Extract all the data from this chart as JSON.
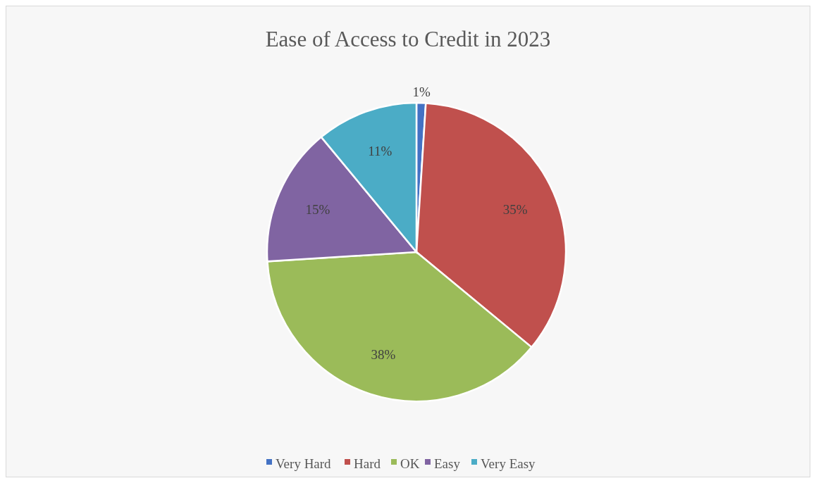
{
  "chart_data": {
    "type": "pie",
    "title": "Ease of Access to Credit in 2023",
    "categories": [
      "Very Hard",
      "Hard",
      "OK",
      "Easy",
      "Very Easy"
    ],
    "values": [
      1,
      35,
      38,
      15,
      11
    ],
    "colors": [
      "#4472c4",
      "#c0504d",
      "#9bbb59",
      "#8064a2",
      "#4bacc6"
    ],
    "value_labels": [
      "1%",
      "35%",
      "38%",
      "15%",
      "11%"
    ],
    "legend": "bottom"
  }
}
